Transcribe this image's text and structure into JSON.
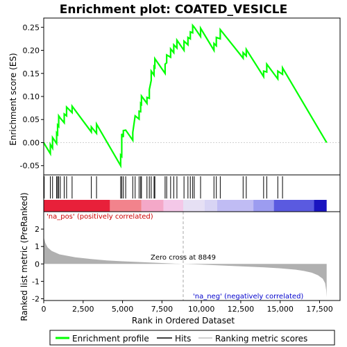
{
  "chart_data": {
    "type": "line",
    "title": "Enrichment plot: COATED_VESICLE",
    "xlabel": "Rank in Ordered Dataset",
    "ylabel_top": "Enrichment score (ES)",
    "ylabel_bottom": "Ranked list metric (PreRanked)",
    "xlim": [
      0,
      18800
    ],
    "xticks": [
      0,
      2500,
      5000,
      7500,
      10000,
      12500,
      15000,
      17500
    ],
    "xtick_labels": [
      "0",
      "2,500",
      "5,000",
      "7,500",
      "10,000",
      "12,500",
      "15,000",
      "17,500"
    ],
    "es_ylim": [
      -0.07,
      0.27
    ],
    "es_yticks": [
      -0.05,
      0.0,
      0.05,
      0.1,
      0.15,
      0.2,
      0.25
    ],
    "es_ytick_labels": [
      "-0.05",
      "0.00",
      "0.05",
      "0.10",
      "0.15",
      "0.20",
      "0.25"
    ],
    "metric_ylim": [
      -2.1,
      3.0
    ],
    "metric_yticks": [
      -2,
      -1,
      0,
      1,
      2
    ],
    "metric_ytick_labels": [
      "-2",
      "-1",
      "0",
      "1",
      "2"
    ],
    "zero_cross_rank": 8849,
    "zero_cross_label": "Zero cross at 8849",
    "pos_label": "'na_pos' (positively correlated)",
    "neg_label": "'na_neg' (negatively correlated)",
    "n_ranks": 17950,
    "hits": [
      30,
      420,
      560,
      820,
      880,
      950,
      1050,
      1300,
      1450,
      1800,
      3020,
      3350,
      4880,
      4950,
      5050,
      5200,
      5650,
      5800,
      6050,
      6150,
      6200,
      6550,
      6700,
      6820,
      7000,
      7050,
      7700,
      7800,
      8050,
      8250,
      8450,
      8900,
      9150,
      9300,
      9450,
      9550,
      9950,
      10800,
      10950,
      11200,
      12650,
      12850,
      13950,
      14150,
      14850,
      15150
    ],
    "enrichment_profile": [
      [
        0,
        0.0
      ],
      [
        30,
        -0.002
      ],
      [
        420,
        -0.024
      ],
      [
        420,
        -0.004
      ],
      [
        560,
        -0.012
      ],
      [
        560,
        0.011
      ],
      [
        820,
        -0.002
      ],
      [
        820,
        0.021
      ],
      [
        880,
        0.018
      ],
      [
        880,
        0.038
      ],
      [
        950,
        0.035
      ],
      [
        950,
        0.058
      ],
      [
        1050,
        0.053
      ],
      [
        1300,
        0.043
      ],
      [
        1300,
        0.062
      ],
      [
        1450,
        0.058
      ],
      [
        1450,
        0.077
      ],
      [
        1800,
        0.065
      ],
      [
        1800,
        0.079
      ],
      [
        3020,
        0.023
      ],
      [
        3020,
        0.034
      ],
      [
        3350,
        0.02
      ],
      [
        3350,
        0.04
      ],
      [
        4880,
        -0.05
      ],
      [
        4880,
        -0.027
      ],
      [
        4950,
        -0.03
      ],
      [
        4950,
        0.019
      ],
      [
        5050,
        0.012
      ],
      [
        5050,
        0.026
      ],
      [
        5200,
        0.027
      ],
      [
        5650,
        0.005
      ],
      [
        5650,
        0.022
      ],
      [
        5800,
        0.058
      ],
      [
        6050,
        0.051
      ],
      [
        6050,
        0.068
      ],
      [
        6150,
        0.067
      ],
      [
        6150,
        0.085
      ],
      [
        6200,
        0.083
      ],
      [
        6200,
        0.101
      ],
      [
        6550,
        0.085
      ],
      [
        6550,
        0.098
      ],
      [
        6700,
        0.096
      ],
      [
        6700,
        0.115
      ],
      [
        6820,
        0.135
      ],
      [
        6820,
        0.155
      ],
      [
        7000,
        0.146
      ],
      [
        7000,
        0.165
      ],
      [
        7050,
        0.163
      ],
      [
        7050,
        0.182
      ],
      [
        7700,
        0.15
      ],
      [
        7700,
        0.17
      ],
      [
        7800,
        0.173
      ],
      [
        7800,
        0.19
      ],
      [
        8050,
        0.185
      ],
      [
        8050,
        0.203
      ],
      [
        8250,
        0.195
      ],
      [
        8250,
        0.212
      ],
      [
        8450,
        0.205
      ],
      [
        8450,
        0.222
      ],
      [
        8900,
        0.2
      ],
      [
        8900,
        0.22
      ],
      [
        9150,
        0.212
      ],
      [
        9150,
        0.228
      ],
      [
        9300,
        0.225
      ],
      [
        9300,
        0.24
      ],
      [
        9450,
        0.238
      ],
      [
        9450,
        0.254
      ],
      [
        9550,
        0.25
      ],
      [
        9950,
        0.23
      ],
      [
        9950,
        0.248
      ],
      [
        10800,
        0.2
      ],
      [
        10800,
        0.215
      ],
      [
        10950,
        0.21
      ],
      [
        10950,
        0.228
      ],
      [
        11200,
        0.225
      ],
      [
        11200,
        0.245
      ],
      [
        12650,
        0.183
      ],
      [
        12650,
        0.195
      ],
      [
        12850,
        0.188
      ],
      [
        12850,
        0.202
      ],
      [
        13950,
        0.143
      ],
      [
        13950,
        0.155
      ],
      [
        14150,
        0.153
      ],
      [
        14150,
        0.17
      ],
      [
        14850,
        0.138
      ],
      [
        14850,
        0.155
      ],
      [
        15150,
        0.148
      ],
      [
        15150,
        0.162
      ],
      [
        17950,
        0.0
      ]
    ],
    "metric_profile": [
      [
        0,
        1.55
      ],
      [
        100,
        1.2
      ],
      [
        250,
        0.95
      ],
      [
        500,
        0.75
      ],
      [
        1000,
        0.55
      ],
      [
        2000,
        0.38
      ],
      [
        3000,
        0.28
      ],
      [
        4000,
        0.2
      ],
      [
        5000,
        0.15
      ],
      [
        6000,
        0.11
      ],
      [
        7000,
        0.07
      ],
      [
        8000,
        0.03
      ],
      [
        8849,
        0.0
      ],
      [
        10000,
        -0.04
      ],
      [
        11000,
        -0.08
      ],
      [
        12000,
        -0.12
      ],
      [
        13000,
        -0.16
      ],
      [
        14000,
        -0.2
      ],
      [
        15000,
        -0.25
      ],
      [
        16000,
        -0.33
      ],
      [
        16500,
        -0.4
      ],
      [
        17000,
        -0.5
      ],
      [
        17400,
        -0.65
      ],
      [
        17700,
        -0.85
      ],
      [
        17850,
        -1.1
      ],
      [
        17920,
        -1.5
      ],
      [
        17950,
        -1.9
      ]
    ],
    "colors": {
      "profile_line": "#00ff00",
      "hit_line": "#000000",
      "metric_fill": "#b0b0b0",
      "zero_line": "#a8a8a8",
      "pos_text": "#cc0000",
      "neg_text": "#0000cc"
    },
    "colorbar_segments": [
      {
        "from": 0,
        "to": 4200,
        "color": "#e8203a"
      },
      {
        "from": 4200,
        "to": 6200,
        "color": "#f2838c"
      },
      {
        "from": 6200,
        "to": 7600,
        "color": "#f4a8c8"
      },
      {
        "from": 7600,
        "to": 8849,
        "color": "#f4c8e8"
      },
      {
        "from": 8849,
        "to": 10200,
        "color": "#e6e0f4"
      },
      {
        "from": 10200,
        "to": 11000,
        "color": "#d8d4f4"
      },
      {
        "from": 11000,
        "to": 13300,
        "color": "#c0bcf4"
      },
      {
        "from": 13300,
        "to": 14600,
        "color": "#9c9cf0"
      },
      {
        "from": 14600,
        "to": 17150,
        "color": "#5a5ae0"
      },
      {
        "from": 17150,
        "to": 17950,
        "color": "#1a14c0"
      }
    ]
  },
  "legend": {
    "items": [
      {
        "label": "Enrichment profile",
        "color": "#00ff00"
      },
      {
        "label": "Hits",
        "color": "#000000"
      },
      {
        "label": "Ranking metric scores",
        "color": "#c0c0c0"
      }
    ]
  }
}
